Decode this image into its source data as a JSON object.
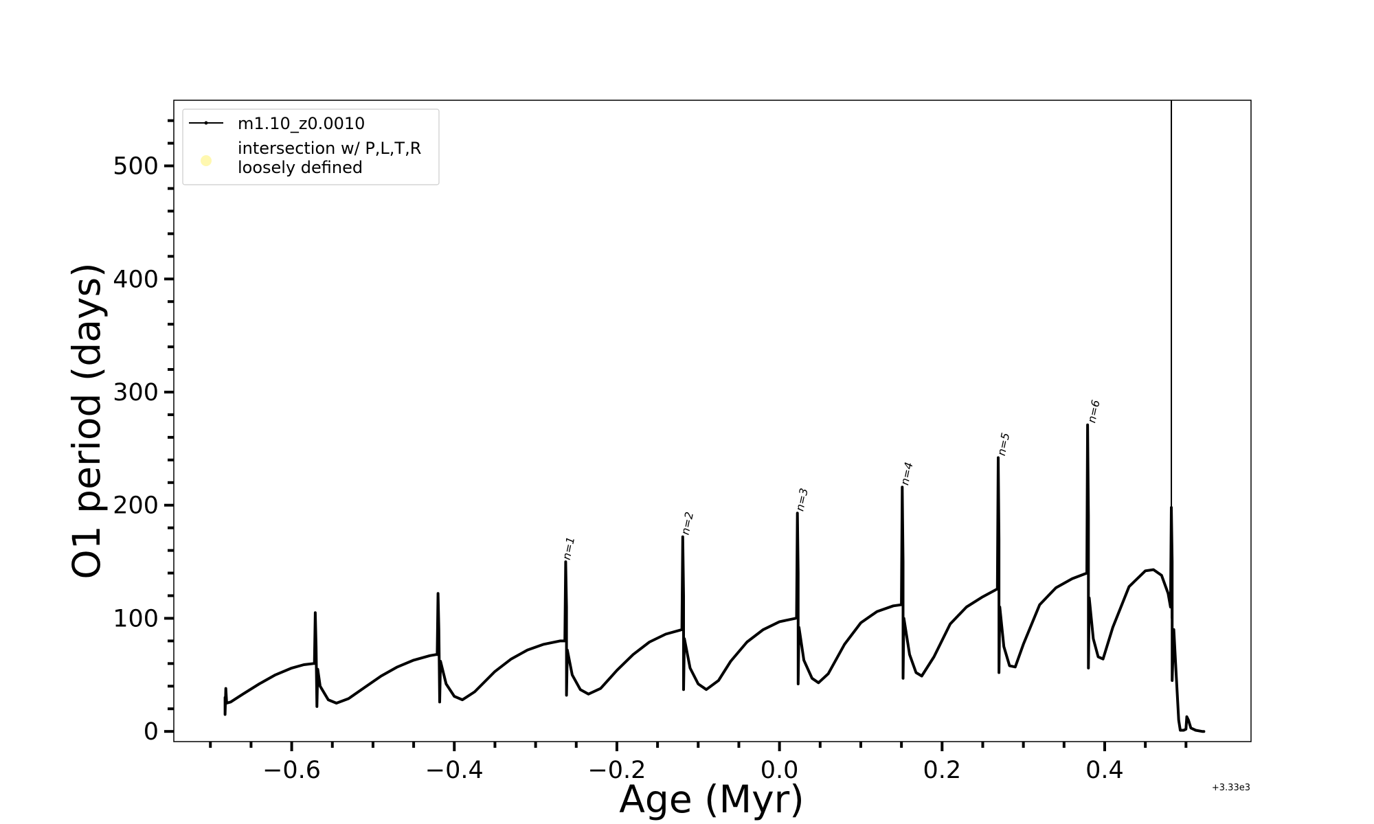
{
  "chart_data": {
    "type": "line",
    "xlabel": "Age (Myr)",
    "ylabel": "O1 period (days)",
    "x_offset_label": "+3.33e3",
    "xlim": [
      -0.745,
      0.58
    ],
    "ylim": [
      -9,
      558
    ],
    "x_ticks": [
      -0.6,
      -0.4,
      -0.2,
      0.0,
      0.2,
      0.4
    ],
    "x_tick_labels": [
      "−0.6",
      "−0.4",
      "−0.2",
      "0.0",
      "0.2",
      "0.4"
    ],
    "y_ticks": [
      0,
      100,
      200,
      300,
      400,
      500
    ],
    "y_tick_labels": [
      "0",
      "100",
      "200",
      "300",
      "400",
      "500"
    ],
    "grid": false,
    "legend_position": "top-left",
    "legend": [
      {
        "label": "m1.10_z0.0010",
        "marker": "line-dot",
        "color": "#000000"
      },
      {
        "label_lines": [
          "intersection w/ P,L,T,R",
          "loosely defined"
        ],
        "marker": "circle",
        "color": "#fff8b0"
      }
    ],
    "pulse_labels": [
      {
        "text": "n=1",
        "x": -0.263,
        "y": 150
      },
      {
        "text": "n=2",
        "x": -0.117,
        "y": 172
      },
      {
        "text": "n=3",
        "x": 0.024,
        "y": 193
      },
      {
        "text": "n=4",
        "x": 0.153,
        "y": 216
      },
      {
        "text": "n=5",
        "x": 0.272,
        "y": 242
      },
      {
        "text": "n=6",
        "x": 0.383,
        "y": 271
      }
    ],
    "vertical_line_x": 0.482,
    "series": [
      {
        "name": "m1.10_z0.0010",
        "color": "#000000",
        "points": [
          [
            -0.682,
            30
          ],
          [
            -0.682,
            15
          ],
          [
            -0.681,
            38
          ],
          [
            -0.68,
            25
          ],
          [
            -0.675,
            26
          ],
          [
            -0.66,
            33
          ],
          [
            -0.64,
            42
          ],
          [
            -0.62,
            50
          ],
          [
            -0.6,
            56
          ],
          [
            -0.585,
            59
          ],
          [
            -0.573,
            60
          ],
          [
            -0.572,
            60
          ],
          [
            -0.571,
            105
          ],
          [
            -0.57,
            75
          ],
          [
            -0.569,
            22
          ],
          [
            -0.568,
            55
          ],
          [
            -0.565,
            40
          ],
          [
            -0.555,
            28
          ],
          [
            -0.545,
            25
          ],
          [
            -0.53,
            29
          ],
          [
            -0.51,
            39
          ],
          [
            -0.49,
            49
          ],
          [
            -0.47,
            57
          ],
          [
            -0.45,
            63
          ],
          [
            -0.43,
            67
          ],
          [
            -0.422,
            68
          ],
          [
            -0.421,
            68
          ],
          [
            -0.42,
            122
          ],
          [
            -0.419,
            90
          ],
          [
            -0.418,
            26
          ],
          [
            -0.417,
            62
          ],
          [
            -0.41,
            42
          ],
          [
            -0.4,
            31
          ],
          [
            -0.39,
            28
          ],
          [
            -0.375,
            35
          ],
          [
            -0.35,
            53
          ],
          [
            -0.33,
            64
          ],
          [
            -0.31,
            72
          ],
          [
            -0.29,
            77
          ],
          [
            -0.27,
            80
          ],
          [
            -0.264,
            80
          ],
          [
            -0.264,
            80
          ],
          [
            -0.263,
            150
          ],
          [
            -0.262,
            110
          ],
          [
            -0.262,
            32
          ],
          [
            -0.261,
            72
          ],
          [
            -0.255,
            50
          ],
          [
            -0.245,
            37
          ],
          [
            -0.235,
            33
          ],
          [
            -0.22,
            38
          ],
          [
            -0.2,
            54
          ],
          [
            -0.18,
            68
          ],
          [
            -0.16,
            79
          ],
          [
            -0.14,
            86
          ],
          [
            -0.12,
            90
          ],
          [
            -0.12,
            90
          ],
          [
            -0.119,
            172
          ],
          [
            -0.118,
            120
          ],
          [
            -0.118,
            37
          ],
          [
            -0.117,
            82
          ],
          [
            -0.11,
            56
          ],
          [
            -0.1,
            42
          ],
          [
            -0.09,
            37
          ],
          [
            -0.075,
            45
          ],
          [
            -0.06,
            62
          ],
          [
            -0.04,
            79
          ],
          [
            -0.02,
            90
          ],
          [
            0.0,
            97
          ],
          [
            0.02,
            100
          ],
          [
            0.021,
            101
          ],
          [
            0.021,
            101
          ],
          [
            0.022,
            193
          ],
          [
            0.023,
            140
          ],
          [
            0.023,
            42
          ],
          [
            0.024,
            92
          ],
          [
            0.03,
            63
          ],
          [
            0.04,
            47
          ],
          [
            0.048,
            43
          ],
          [
            0.06,
            51
          ],
          [
            0.08,
            77
          ],
          [
            0.1,
            96
          ],
          [
            0.12,
            106
          ],
          [
            0.14,
            111
          ],
          [
            0.15,
            112
          ],
          [
            0.15,
            112
          ],
          [
            0.151,
            216
          ],
          [
            0.152,
            150
          ],
          [
            0.152,
            47
          ],
          [
            0.153,
            100
          ],
          [
            0.16,
            68
          ],
          [
            0.168,
            52
          ],
          [
            0.175,
            49
          ],
          [
            0.19,
            66
          ],
          [
            0.21,
            95
          ],
          [
            0.23,
            110
          ],
          [
            0.25,
            119
          ],
          [
            0.268,
            126
          ],
          [
            0.268,
            126
          ],
          [
            0.269,
            242
          ],
          [
            0.27,
            170
          ],
          [
            0.27,
            52
          ],
          [
            0.271,
            110
          ],
          [
            0.276,
            75
          ],
          [
            0.283,
            58
          ],
          [
            0.29,
            57
          ],
          [
            0.3,
            77
          ],
          [
            0.32,
            112
          ],
          [
            0.34,
            127
          ],
          [
            0.36,
            135
          ],
          [
            0.378,
            140
          ],
          [
            0.378,
            140
          ],
          [
            0.379,
            271
          ],
          [
            0.38,
            190
          ],
          [
            0.38,
            56
          ],
          [
            0.381,
            118
          ],
          [
            0.386,
            82
          ],
          [
            0.392,
            66
          ],
          [
            0.398,
            64
          ],
          [
            0.41,
            92
          ],
          [
            0.43,
            128
          ],
          [
            0.45,
            142
          ],
          [
            0.46,
            143
          ],
          [
            0.47,
            138
          ],
          [
            0.478,
            122
          ],
          [
            0.481,
            110
          ],
          [
            0.481,
            110
          ],
          [
            0.482,
            198
          ],
          [
            0.483,
            150
          ],
          [
            0.483,
            45
          ],
          [
            0.485,
            90
          ],
          [
            0.488,
            50
          ],
          [
            0.491,
            10
          ],
          [
            0.493,
            1
          ],
          [
            0.497,
            1
          ],
          [
            0.5,
            2
          ],
          [
            0.501,
            13
          ],
          [
            0.503,
            10
          ],
          [
            0.506,
            3
          ],
          [
            0.512,
            1
          ],
          [
            0.52,
            0
          ],
          [
            0.522,
            0
          ]
        ]
      }
    ]
  }
}
